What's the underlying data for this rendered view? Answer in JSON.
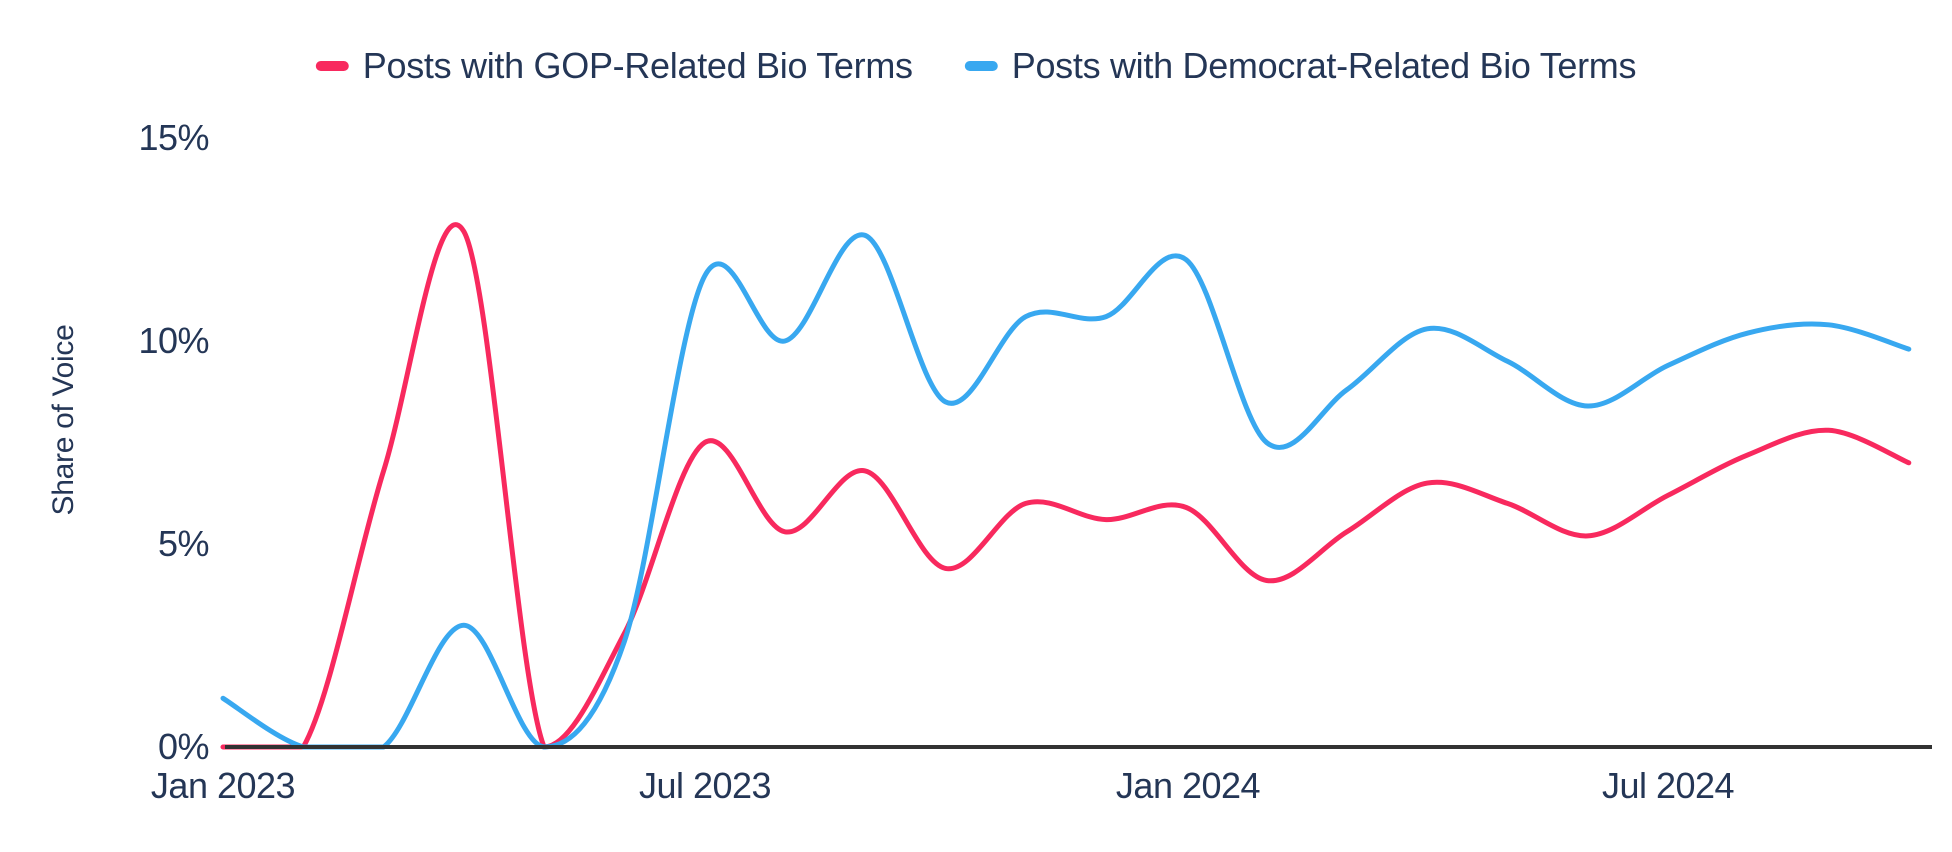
{
  "title": "",
  "legend": {
    "items": [
      {
        "label": "Posts with GOP-Related Bio Terms",
        "color": "#f8295e"
      },
      {
        "label": "Posts with Democrat-Related Bio Terms",
        "color": "#38a8f0"
      }
    ]
  },
  "axes": {
    "y_title": "Share of Voice",
    "y_tick_labels": [
      "15%",
      "10%",
      "5%",
      "0%"
    ],
    "x_tick_labels": [
      "Jan 2023",
      "Jul 2023",
      "Jan 2024",
      "Jul 2024"
    ]
  },
  "colors": {
    "text": "#243656",
    "axis_line": "#323232",
    "background": "#ffffff",
    "gop_pink": "#f8295e",
    "dem_blue": "#38a8f0"
  },
  "chart_data": {
    "type": "line",
    "title": "",
    "xlabel": "",
    "ylabel": "Share of Voice",
    "ylim": [
      0,
      15
    ],
    "grid": false,
    "legend_position": "top",
    "y_ticks": [
      0,
      5,
      10,
      15
    ],
    "x_ticks": [
      "Jan 2023",
      "Jul 2023",
      "Jan 2024",
      "Jul 2024"
    ],
    "x": [
      "2023-01",
      "2023-02",
      "2023-03",
      "2023-04",
      "2023-05",
      "2023-06",
      "2023-07",
      "2023-08",
      "2023-09",
      "2023-10",
      "2023-11",
      "2023-12",
      "2024-01",
      "2024-02",
      "2024-03",
      "2024-04",
      "2024-05",
      "2024-06",
      "2024-07",
      "2024-08",
      "2024-09",
      "2024-10"
    ],
    "series": [
      {
        "name": "Posts with GOP-Related Bio Terms",
        "color": "#f8295e",
        "values": [
          0.0,
          0.0,
          6.8,
          12.7,
          0.0,
          2.8,
          7.5,
          5.3,
          6.8,
          4.4,
          6.0,
          5.6,
          5.9,
          4.1,
          5.3,
          6.5,
          6.0,
          5.2,
          6.2,
          7.2,
          7.8,
          7.0
        ]
      },
      {
        "name": "Posts with Democrat-Related Bio Terms",
        "color": "#38a8f0",
        "values": [
          1.2,
          0.0,
          0.0,
          3.0,
          0.0,
          2.6,
          11.6,
          10.0,
          12.6,
          8.5,
          10.6,
          10.6,
          12.0,
          7.5,
          8.8,
          10.3,
          9.5,
          8.4,
          9.4,
          10.2,
          10.4,
          9.8
        ]
      }
    ]
  }
}
